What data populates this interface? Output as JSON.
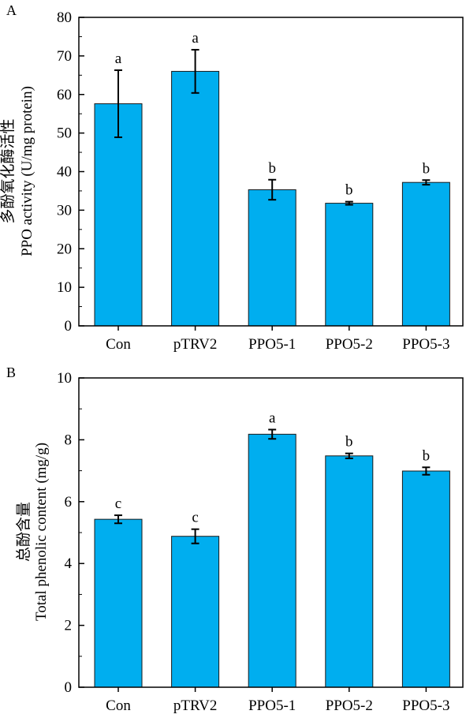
{
  "chart_data": [
    {
      "panel_label": "A",
      "type": "bar",
      "categories": [
        "Con",
        "pTRV2",
        "PPO5-1",
        "PPO5-2",
        "PPO5-3"
      ],
      "values": [
        57.6,
        66.0,
        35.3,
        31.8,
        37.2
      ],
      "errors": [
        8.7,
        5.6,
        2.6,
        0.4,
        0.6
      ],
      "significance": [
        "a",
        "a",
        "b",
        "b",
        "b"
      ],
      "ylabel_cn": "多酚氧化酶活性",
      "ylabel": "PPO activity (U/mg protein)",
      "ylim": [
        0,
        80
      ],
      "yticks": [
        "0",
        "10",
        "20",
        "30",
        "40",
        "50",
        "60",
        "70",
        "80"
      ],
      "bar_color": "#00AEEF",
      "grid": false
    },
    {
      "panel_label": "B",
      "type": "bar",
      "categories": [
        "Con",
        "pTRV2",
        "PPO5-1",
        "PPO5-2",
        "PPO5-3"
      ],
      "values": [
        5.43,
        4.88,
        8.18,
        7.48,
        6.99
      ],
      "errors": [
        0.13,
        0.23,
        0.15,
        0.08,
        0.12
      ],
      "significance": [
        "c",
        "c",
        "a",
        "b",
        "b"
      ],
      "ylabel_cn": "总酚含量",
      "ylabel": "Total phenolic content (mg/g)",
      "ylim": [
        0,
        10
      ],
      "yticks": [
        "0",
        "2",
        "4",
        "6",
        "8",
        "10"
      ],
      "bar_color": "#00AEEF",
      "grid": false
    }
  ]
}
